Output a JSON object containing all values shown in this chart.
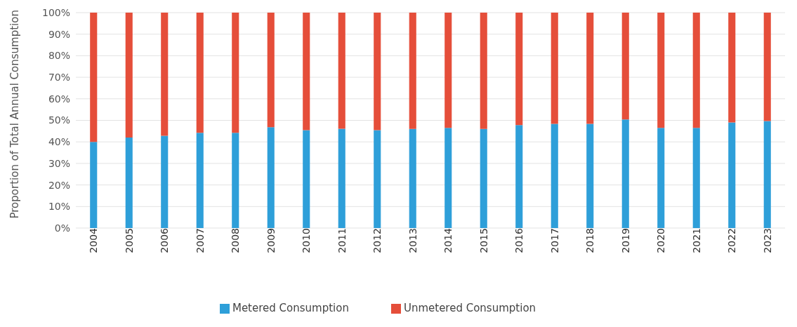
{
  "chart_data": {
    "type": "bar",
    "stacked": true,
    "ylabel": "Proportion of Total Annual Consumption",
    "categories": [
      "2004",
      "2005",
      "2006",
      "2007",
      "2008",
      "2009",
      "2010",
      "2011",
      "2012",
      "2013",
      "2014",
      "2015",
      "2016",
      "2017",
      "2018",
      "2019",
      "2020",
      "2021",
      "2022",
      "2023"
    ],
    "series": [
      {
        "name": "Metered Consumption",
        "color": "#2e9fd9",
        "values": [
          40,
          42,
          42.8,
          44.2,
          44.2,
          46.8,
          45.4,
          46.1,
          45.4,
          46,
          46.5,
          46,
          47.8,
          48.4,
          48.4,
          50.4,
          46.5,
          46.5,
          49,
          49.7
        ]
      },
      {
        "name": "Unmetered Consumption",
        "color": "#e54e3a",
        "values": [
          60,
          58,
          57.2,
          55.8,
          55.8,
          53.2,
          54.6,
          53.9,
          54.6,
          54,
          53.5,
          54,
          52.2,
          51.6,
          51.6,
          49.6,
          53.5,
          53.5,
          51,
          50.3
        ]
      }
    ],
    "ylim": [
      0,
      100
    ],
    "yticks": [
      {
        "value": 0,
        "label": "0%"
      },
      {
        "value": 10,
        "label": "10%"
      },
      {
        "value": 20,
        "label": "20%"
      },
      {
        "value": 30,
        "label": "30%"
      },
      {
        "value": 40,
        "label": "40%"
      },
      {
        "value": 50,
        "label": "50%"
      },
      {
        "value": 60,
        "label": "60%"
      },
      {
        "value": 70,
        "label": "70%"
      },
      {
        "value": 80,
        "label": "80%"
      },
      {
        "value": 90,
        "label": "90%"
      },
      {
        "value": 100,
        "label": "100%"
      }
    ],
    "grid": "y",
    "legend": "bottom"
  }
}
